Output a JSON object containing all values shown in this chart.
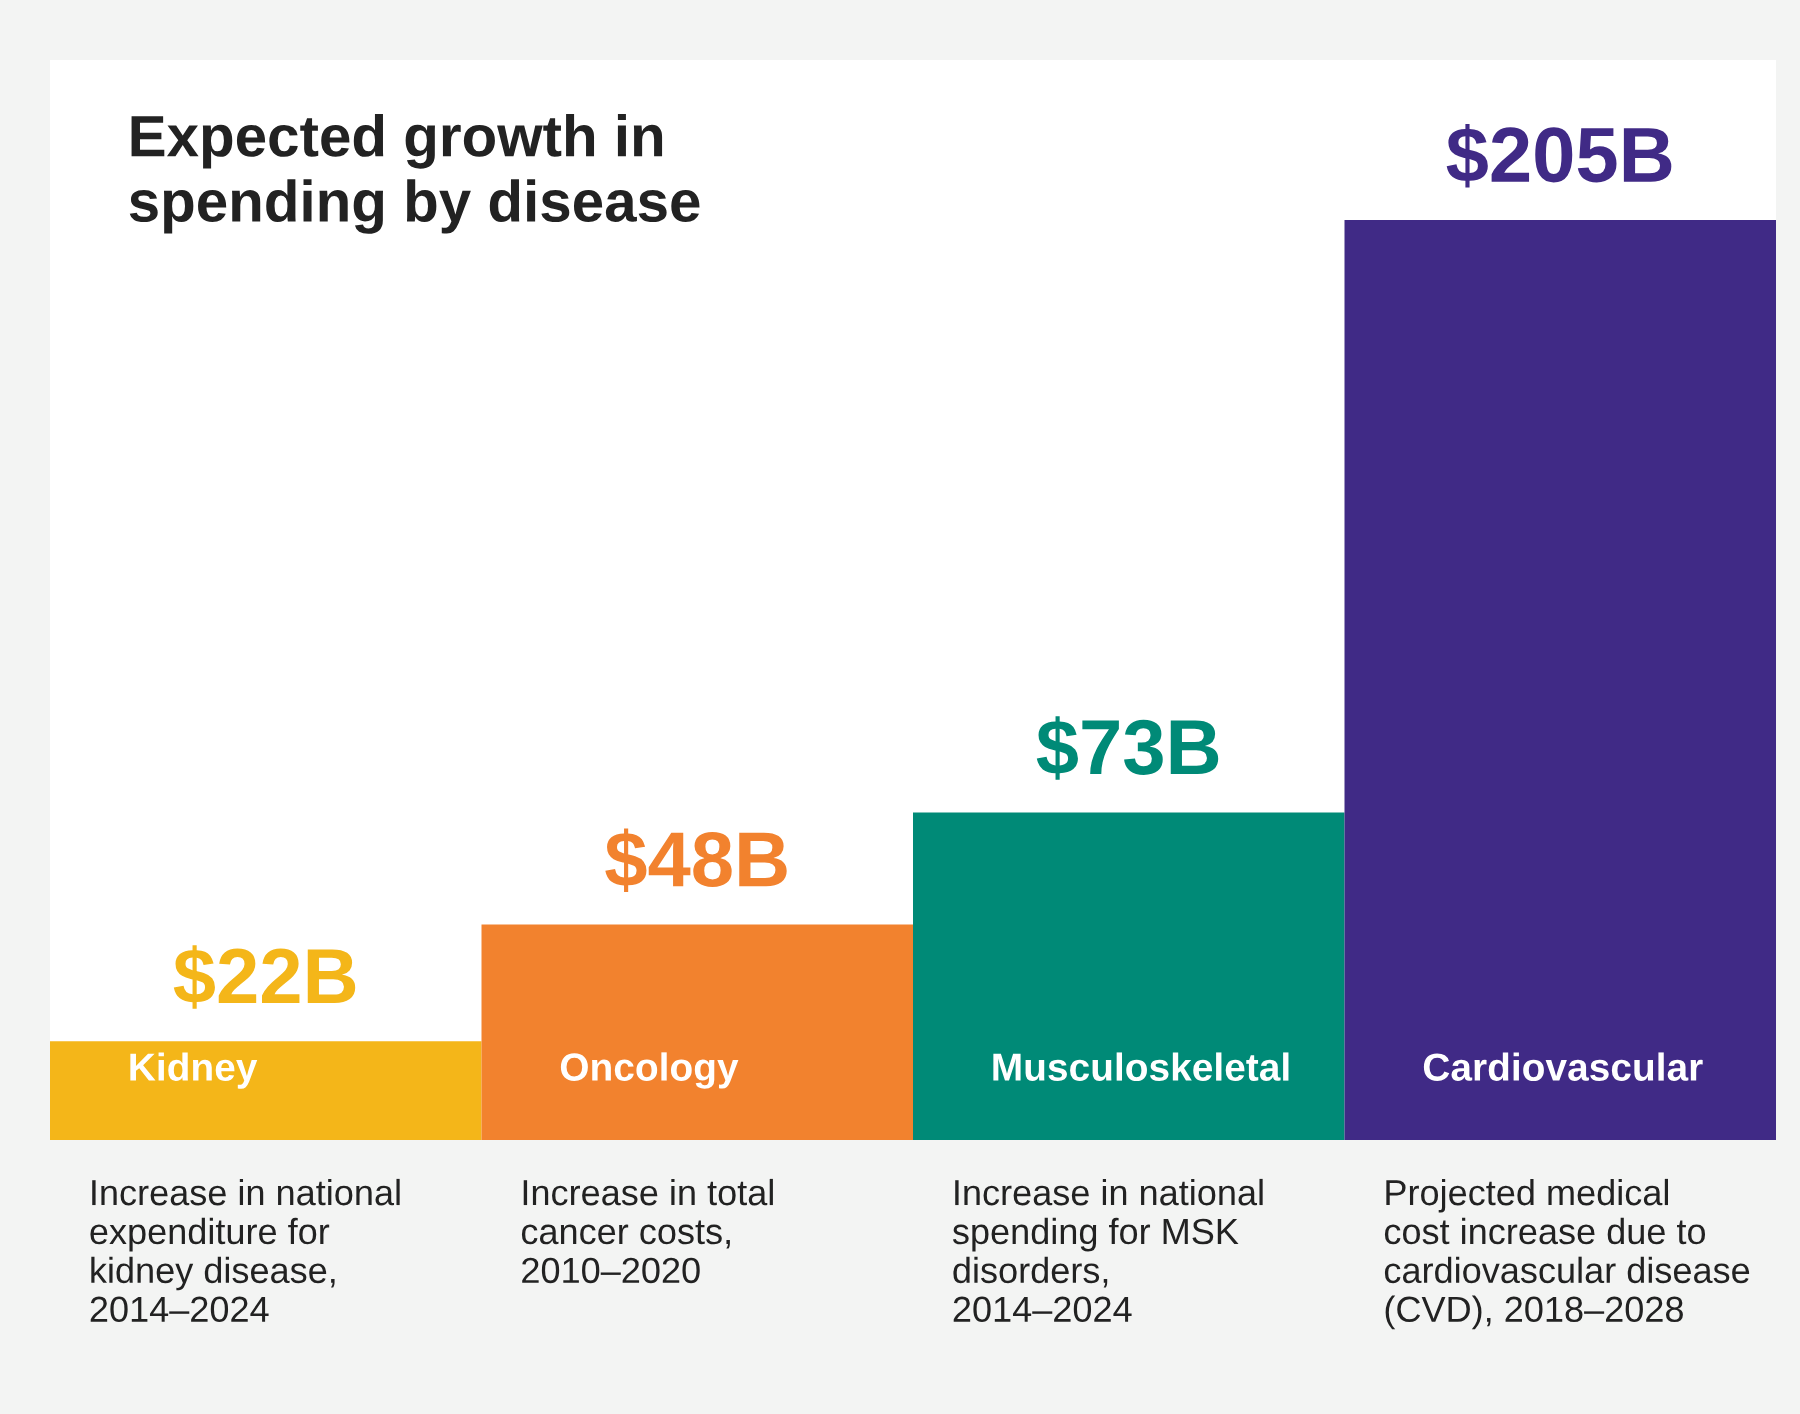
{
  "chart_data": {
    "type": "bar",
    "title": "Expected growth in\nspending by disease",
    "categories": [
      "Kidney",
      "Oncology",
      "Musculoskeletal",
      "Cardiovascular"
    ],
    "values": [
      22,
      48,
      73,
      205
    ],
    "colors": [
      "#f4b619",
      "#f2822e",
      "#008a77",
      "#402a86"
    ],
    "value_labels": [
      "$22B",
      "$48B",
      "$73B",
      "$205B"
    ],
    "annotations": [
      "Increase in national\nexpenditure for\nkidney disease,\n2014–2024",
      "Increase in total\ncancer costs,\n2010–2020",
      "Increase in national\nspending for MSK\ndisorders,\n2014–2024",
      "Projected medical\ncost increase due to\ncardiovascular disease\n(CVD), 2018–2028"
    ],
    "data_labels": true
  }
}
